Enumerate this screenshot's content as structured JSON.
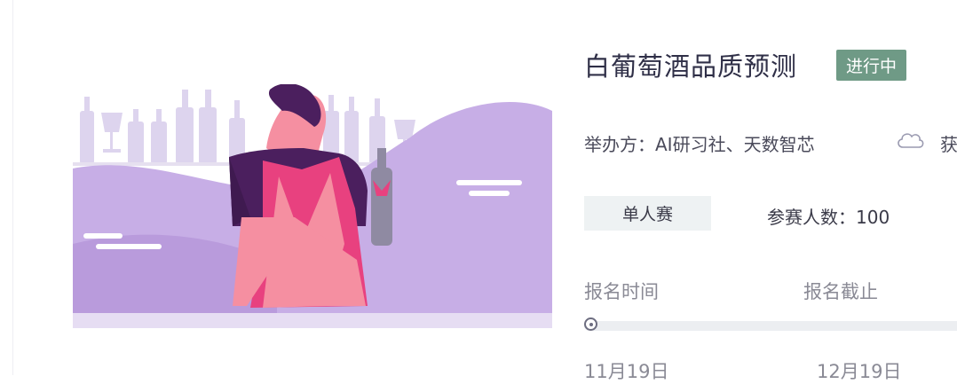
{
  "competition": {
    "title": "白葡萄酒品质预测",
    "status": "进行中",
    "organizer": "举办方：AI研习社、天数智芯",
    "cloud_text": "获",
    "type": "单人赛",
    "participants": "参赛人数：100"
  },
  "timeline": {
    "start_label": "报名时间",
    "end_label": "报名截止",
    "start_date": "11月19日",
    "end_date": "12月19日"
  },
  "icons": {
    "cloud": "cloud-icon",
    "progress": "radio-dot-icon"
  },
  "colors": {
    "status_badge": "#6f9a86",
    "banner_purple": "#c7aee6",
    "apron_pink": "#e8417f",
    "shirt": "#4b1f5e"
  }
}
